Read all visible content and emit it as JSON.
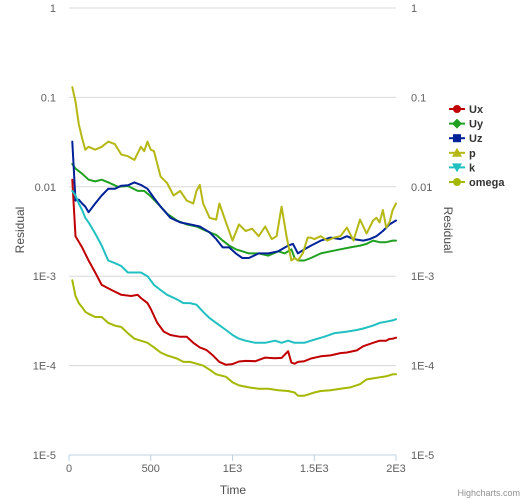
{
  "chart_data": {
    "type": "line",
    "title": "",
    "xlabel": "Time",
    "ylabel_left": "Residual",
    "ylabel_right": "Residual",
    "x_scale": "linear",
    "y_scale": "log",
    "xlim": [
      0,
      2000
    ],
    "ylim": [
      1e-05,
      1
    ],
    "x_ticks": [
      0,
      500,
      1000,
      1500,
      2000
    ],
    "x_tick_labels": [
      "0",
      "500",
      "1E3",
      "1.5E3",
      "2E3"
    ],
    "y_ticks": [
      1,
      0.1,
      0.01,
      0.001,
      0.0001,
      1e-05
    ],
    "y_tick_labels": [
      "1",
      "0.1",
      "0.01",
      "1E-3",
      "1E-4",
      "1E-5"
    ],
    "grid": "horizontal",
    "legend_position": "right",
    "credits": "Highcharts.com",
    "series": [
      {
        "name": "Ux",
        "color": "#c00000",
        "marker": "circle",
        "x": [
          20,
          40,
          80,
          120,
          160,
          200,
          260,
          320,
          380,
          420,
          440,
          480,
          500,
          540,
          580,
          620,
          680,
          720,
          760,
          800,
          840,
          880,
          920,
          960,
          1000,
          1040,
          1080,
          1140,
          1200,
          1260,
          1300,
          1340,
          1360,
          1380,
          1400,
          1440,
          1480,
          1540,
          1600,
          1660,
          1700,
          1760,
          1800,
          1860,
          1900,
          1940,
          1960,
          1980,
          2000
        ],
        "y": [
          0.012,
          0.0028,
          0.0021,
          0.0015,
          0.0011,
          0.0008,
          0.0007,
          0.00062,
          0.0006,
          0.00062,
          0.00057,
          0.0005,
          0.00043,
          0.0003,
          0.00024,
          0.00022,
          0.00021,
          0.00021,
          0.00018,
          0.00016,
          0.00015,
          0.00013,
          0.00011,
          0.000102,
          0.000104,
          0.000111,
          0.000113,
          0.000112,
          0.000123,
          0.000121,
          0.000122,
          0.000145,
          0.000108,
          0.000105,
          0.00011,
          0.000112,
          0.00012,
          0.000127,
          0.00013,
          0.000138,
          0.00014,
          0.000148,
          0.000165,
          0.00018,
          0.00019,
          0.00019,
          0.000199,
          0.0002,
          0.000205
        ]
      },
      {
        "name": "Uy",
        "color": "#20a020",
        "marker": "diamond",
        "x": [
          20,
          40,
          80,
          120,
          160,
          200,
          250,
          300,
          360,
          420,
          460,
          500,
          560,
          600,
          660,
          720,
          780,
          840,
          900,
          940,
          980,
          1020,
          1060,
          1100,
          1160,
          1220,
          1280,
          1320,
          1360,
          1380,
          1400,
          1440,
          1480,
          1540,
          1600,
          1660,
          1720,
          1780,
          1820,
          1860,
          1900,
          1940,
          1980,
          2000
        ],
        "y": [
          0.018,
          0.016,
          0.014,
          0.012,
          0.0115,
          0.012,
          0.011,
          0.01,
          0.0102,
          0.009,
          0.009,
          0.0078,
          0.006,
          0.005,
          0.0042,
          0.0038,
          0.0036,
          0.0032,
          0.0029,
          0.0025,
          0.0022,
          0.002,
          0.0019,
          0.0018,
          0.0018,
          0.0017,
          0.0019,
          0.0018,
          0.002,
          0.0016,
          0.0015,
          0.0015,
          0.0016,
          0.0018,
          0.0019,
          0.002,
          0.0021,
          0.0022,
          0.0023,
          0.0025,
          0.0024,
          0.0024,
          0.0025,
          0.0025
        ]
      },
      {
        "name": "Uz",
        "color": "#002299",
        "marker": "square",
        "x": [
          20,
          40,
          60,
          80,
          100,
          120,
          160,
          200,
          240,
          280,
          320,
          360,
          400,
          440,
          480,
          520,
          560,
          620,
          680,
          740,
          800,
          860,
          900,
          940,
          980,
          1020,
          1060,
          1100,
          1160,
          1220,
          1280,
          1340,
          1370,
          1400,
          1440,
          1480,
          1540,
          1600,
          1660,
          1700,
          1740,
          1800,
          1840,
          1880,
          1920,
          1960,
          2000
        ],
        "y": [
          0.032,
          0.007,
          0.0072,
          0.0065,
          0.006,
          0.0052,
          0.0065,
          0.008,
          0.0095,
          0.0095,
          0.0103,
          0.0104,
          0.0112,
          0.0105,
          0.0095,
          0.0075,
          0.006,
          0.0045,
          0.004,
          0.0038,
          0.0036,
          0.0031,
          0.0026,
          0.0021,
          0.0021,
          0.0018,
          0.0016,
          0.0016,
          0.0018,
          0.0018,
          0.0019,
          0.0022,
          0.0023,
          0.0018,
          0.002,
          0.0022,
          0.0025,
          0.0027,
          0.0026,
          0.0028,
          0.0026,
          0.0025,
          0.0026,
          0.0028,
          0.0032,
          0.0038,
          0.0042
        ]
      },
      {
        "name": "p",
        "color": "#b5b812",
        "marker": "triangle",
        "x": [
          20,
          40,
          60,
          80,
          100,
          120,
          160,
          200,
          240,
          280,
          320,
          360,
          400,
          440,
          460,
          480,
          500,
          520,
          560,
          600,
          640,
          680,
          720,
          760,
          780,
          800,
          820,
          860,
          900,
          920,
          960,
          1000,
          1040,
          1080,
          1120,
          1160,
          1200,
          1240,
          1270,
          1300,
          1330,
          1360,
          1380,
          1400,
          1430,
          1460,
          1480,
          1500,
          1540,
          1580,
          1620,
          1660,
          1700,
          1740,
          1780,
          1820,
          1860,
          1880,
          1900,
          1920,
          1940,
          1960,
          1980,
          2000
        ],
        "y": [
          0.13,
          0.09,
          0.05,
          0.035,
          0.026,
          0.028,
          0.026,
          0.028,
          0.032,
          0.03,
          0.023,
          0.022,
          0.02,
          0.028,
          0.025,
          0.032,
          0.026,
          0.025,
          0.013,
          0.011,
          0.008,
          0.009,
          0.007,
          0.0065,
          0.009,
          0.0105,
          0.0065,
          0.0045,
          0.0043,
          0.0065,
          0.004,
          0.0025,
          0.0038,
          0.0032,
          0.0034,
          0.0028,
          0.0036,
          0.0026,
          0.0028,
          0.006,
          0.0028,
          0.0015,
          0.0016,
          0.0015,
          0.0018,
          0.0027,
          0.0027,
          0.0026,
          0.0028,
          0.0025,
          0.0027,
          0.0028,
          0.0035,
          0.0025,
          0.0043,
          0.003,
          0.0042,
          0.0045,
          0.004,
          0.0055,
          0.0035,
          0.004,
          0.0055,
          0.0065
        ]
      },
      {
        "name": "k",
        "color": "#20c0c0",
        "marker": "triangle-down",
        "x": [
          20,
          40,
          60,
          80,
          100,
          120,
          160,
          200,
          240,
          280,
          320,
          360,
          400,
          440,
          480,
          520,
          560,
          600,
          660,
          700,
          740,
          780,
          820,
          860,
          900,
          960,
          1000,
          1040,
          1080,
          1140,
          1200,
          1260,
          1300,
          1340,
          1380,
          1400,
          1440,
          1480,
          1520,
          1560,
          1620,
          1700,
          1760,
          1800,
          1860,
          1900,
          1940,
          1980,
          2000
        ],
        "y": [
          0.009,
          0.008,
          0.0065,
          0.0055,
          0.0045,
          0.004,
          0.003,
          0.0022,
          0.0015,
          0.0014,
          0.0013,
          0.0011,
          0.0011,
          0.0011,
          0.001,
          0.0008,
          0.0007,
          0.00062,
          0.00055,
          0.0005,
          0.0005,
          0.00048,
          0.0004,
          0.00034,
          0.0003,
          0.00025,
          0.00022,
          0.0002,
          0.00019,
          0.00018,
          0.00018,
          0.00019,
          0.00018,
          0.00019,
          0.00018,
          0.00018,
          0.00018,
          0.00019,
          0.0002,
          0.00021,
          0.00023,
          0.00024,
          0.00025,
          0.00026,
          0.00028,
          0.0003,
          0.00031,
          0.00032,
          0.00033
        ]
      },
      {
        "name": "omega",
        "color": "#a5b800",
        "marker": "circle",
        "x": [
          20,
          40,
          60,
          80,
          100,
          120,
          160,
          200,
          240,
          280,
          320,
          360,
          400,
          440,
          480,
          520,
          560,
          600,
          660,
          700,
          740,
          780,
          820,
          860,
          900,
          960,
          1000,
          1040,
          1100,
          1160,
          1220,
          1280,
          1340,
          1380,
          1400,
          1440,
          1500,
          1540,
          1600,
          1660,
          1720,
          1780,
          1820,
          1860,
          1900,
          1940,
          1980,
          2000
        ],
        "y": [
          0.0009,
          0.0006,
          0.0005,
          0.00045,
          0.0004,
          0.00038,
          0.00035,
          0.00035,
          0.0003,
          0.00028,
          0.00027,
          0.00023,
          0.0002,
          0.00019,
          0.00018,
          0.00016,
          0.00014,
          0.00013,
          0.00012,
          0.00011,
          0.00011,
          0.000105,
          0.0001,
          9e-05,
          8e-05,
          7.5e-05,
          6.5e-05,
          6e-05,
          5.7e-05,
          5.5e-05,
          5.5e-05,
          5.3e-05,
          5.2e-05,
          5e-05,
          4.6e-05,
          4.6e-05,
          5e-05,
          5.2e-05,
          5.3e-05,
          5.5e-05,
          5.7e-05,
          6.2e-05,
          7e-05,
          7.2e-05,
          7.4e-05,
          7.6e-05,
          8e-05,
          8e-05
        ]
      }
    ]
  }
}
